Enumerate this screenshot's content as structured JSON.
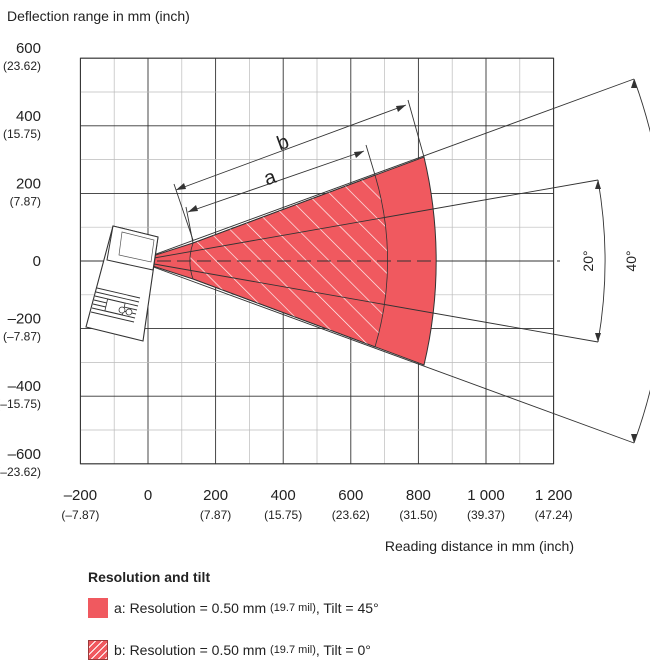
{
  "labels": {
    "y_axis_title": "Deflection range in mm (inch)",
    "x_axis_title": "Reading distance in mm (inch)",
    "label_a": "a",
    "label_b": "b",
    "angle_20": "20°",
    "angle_40": "40°"
  },
  "y_ticks": [
    {
      "value": 600,
      "label": "600",
      "sub": "(23.62)"
    },
    {
      "value": 400,
      "label": "400",
      "sub": "(15.75)"
    },
    {
      "value": 200,
      "label": "200",
      "sub": "(7.87)"
    },
    {
      "value": 0,
      "label": "0",
      "sub": ""
    },
    {
      "value": -200,
      "label": "–200",
      "sub": "(–7.87)"
    },
    {
      "value": -400,
      "label": "–400",
      "sub": "(–15.75)"
    },
    {
      "value": -600,
      "label": "–600",
      "sub": "(–23.62)"
    }
  ],
  "x_ticks": [
    {
      "value": -200,
      "label": "–200",
      "sub": "(–7.87)"
    },
    {
      "value": 0,
      "label": "0",
      "sub": ""
    },
    {
      "value": 200,
      "label": "200",
      "sub": "(7.87)"
    },
    {
      "value": 400,
      "label": "400",
      "sub": "(15.75)"
    },
    {
      "value": 600,
      "label": "600",
      "sub": "(23.62)"
    },
    {
      "value": 800,
      "label": "800",
      "sub": "(31.50)"
    },
    {
      "value": 1000,
      "label": "1 000",
      "sub": "(39.37)"
    },
    {
      "value": 1200,
      "label": "1 200",
      "sub": "(47.24)"
    }
  ],
  "legend": {
    "title": "Resolution and tilt",
    "items": [
      {
        "prefix": "a: Resolution = 0.50 mm",
        "unit": "(19.7 mil)",
        "suffix": ", Tilt = 45°"
      },
      {
        "prefix": "b: Resolution = 0.50 mm",
        "unit": "(19.7 mil)",
        "suffix": ", Tilt = 0°"
      }
    ]
  },
  "colors": {
    "fill": "#f0595f",
    "grid_major": "#333333",
    "grid_minor": "#bbbbbb"
  }
}
